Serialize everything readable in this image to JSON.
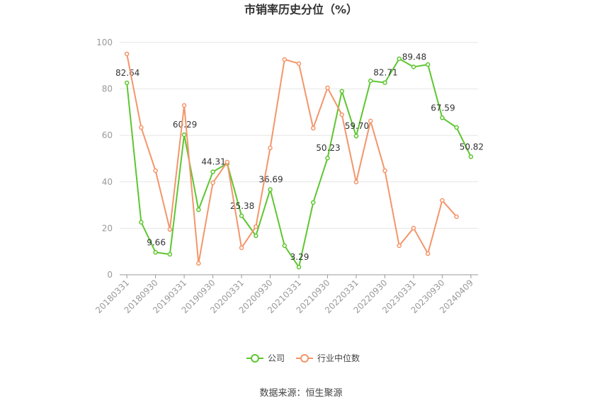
{
  "chart_data": {
    "type": "line",
    "title": "市销率历史分位（%）",
    "categories": [
      "20180331",
      null,
      "20180930",
      null,
      "20190331",
      null,
      "20190930",
      null,
      "20200331",
      null,
      "20200930",
      null,
      "20210331",
      null,
      "20210930",
      null,
      "20220331",
      null,
      "20220930",
      null,
      "20230331",
      null,
      "20230930",
      null,
      "20240409"
    ],
    "series": [
      {
        "name": "公司",
        "color": "#5dc62f",
        "values": [
          82.64,
          22.6,
          9.66,
          8.8,
          60.29,
          28,
          44.31,
          47.9,
          25.38,
          16.8,
          36.69,
          12.5,
          3.29,
          31.1,
          50.23,
          79,
          59.7,
          83.5,
          82.71,
          93,
          89.48,
          90.5,
          67.59,
          63.4,
          50.82
        ],
        "value_labels": [
          "82.64",
          null,
          "9.66",
          null,
          "60.29",
          null,
          "44.31",
          null,
          "25.38",
          null,
          "36.69",
          null,
          "3.29",
          null,
          "50.23",
          null,
          "59.70",
          null,
          "82.71",
          null,
          "89.48",
          null,
          "67.59",
          null,
          "50.82"
        ]
      },
      {
        "name": "行业中位数",
        "color": "#f4956a",
        "values": [
          95.1,
          63.4,
          44.8,
          19.5,
          72.9,
          4.9,
          39.6,
          48.5,
          11.6,
          20.7,
          54.6,
          92.7,
          90.9,
          63.1,
          80.5,
          68.9,
          39.9,
          66.2,
          44.8,
          12.5,
          20.1,
          9.1,
          32,
          25,
          null
        ]
      }
    ],
    "ylim": [
      0,
      100
    ],
    "yticks": [
      0,
      20,
      40,
      60,
      80,
      100
    ],
    "grid": true,
    "legend": "bottom",
    "source": "数据来源：恒生聚源"
  }
}
